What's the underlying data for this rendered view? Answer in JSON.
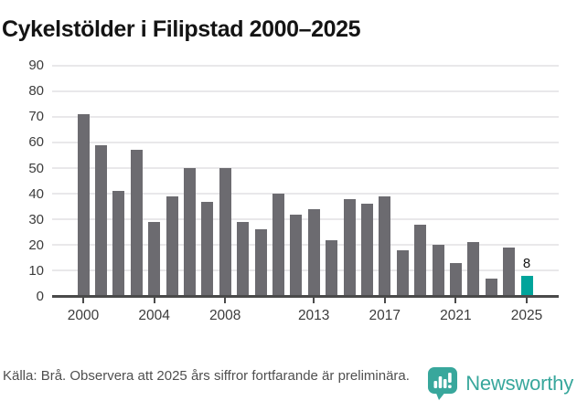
{
  "colors": {
    "bar": "#6c6b70",
    "highlight": "#00a49b",
    "brand_teal": "#38a79c",
    "gridline": "#e9e8ea",
    "axis": "#4a4a4a"
  },
  "chart_data": {
    "type": "bar",
    "title": "Cykelstölder i Filipstad 2000–2025",
    "years": [
      2000,
      2001,
      2002,
      2003,
      2004,
      2005,
      2006,
      2007,
      2008,
      2009,
      2010,
      2011,
      2012,
      2013,
      2014,
      2015,
      2016,
      2017,
      2018,
      2019,
      2020,
      2021,
      2022,
      2023,
      2024,
      2025
    ],
    "values": [
      71,
      59,
      41,
      57,
      29,
      39,
      50,
      37,
      50,
      29,
      26,
      40,
      32,
      34,
      22,
      38,
      36,
      39,
      18,
      28,
      20,
      13,
      21,
      7,
      19,
      8
    ],
    "highlight_year": 2025,
    "highlight_label": "8",
    "yticks": [
      0,
      10,
      20,
      30,
      40,
      50,
      60,
      70,
      80,
      90
    ],
    "xticks": [
      2000,
      2004,
      2008,
      2013,
      2017,
      2021,
      2025
    ],
    "ylim": [
      0,
      90
    ],
    "grid": "horizontal",
    "legend": "none"
  },
  "footer": {
    "source_text": "Källa: Brå. Observera att 2025 års siffror fortfarande är preliminära.",
    "brand": "Newsworthy"
  }
}
